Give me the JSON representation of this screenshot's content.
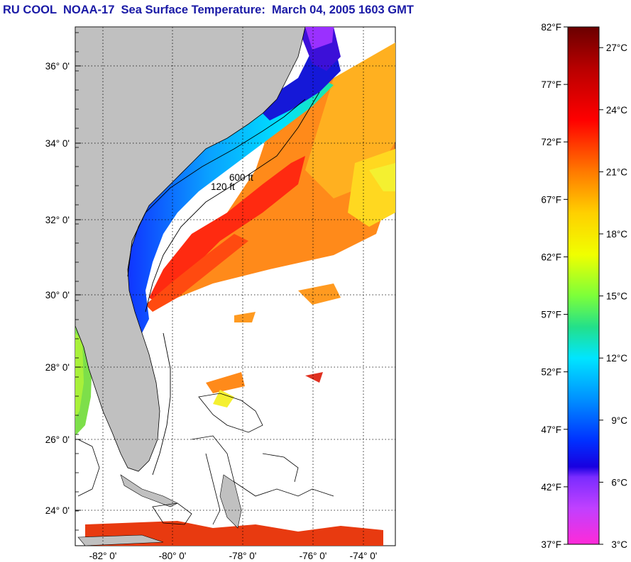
{
  "title": "RU COOL  NOAA-17  Sea Surface Temperature:  March 04, 2005 1603 GMT",
  "map": {
    "lat_labels": [
      "36° 0'",
      "34° 0'",
      "32° 0'",
      "30° 0'",
      "28° 0'",
      "26° 0'",
      "24° 0'"
    ],
    "lon_labels": [
      "-82° 0'",
      "-80° 0'",
      "-78° 0'",
      "-76° 0'",
      "-74° 0'"
    ],
    "contour_labels": [
      "120 ft",
      "600 ft"
    ],
    "colors": {
      "land": "#c0c0c0",
      "ocean_nodata": "#ffffff",
      "grid": "#000000"
    }
  },
  "colorbar": {
    "fahrenheit_labels": [
      "82°F",
      "77°F",
      "72°F",
      "67°F",
      "62°F",
      "57°F",
      "52°F",
      "47°F",
      "42°F",
      "37°F"
    ],
    "celsius_labels": [
      "27°C",
      "24°C",
      "21°C",
      "18°C",
      "15°C",
      "12°C",
      "9°C",
      "6°C",
      "3°C"
    ],
    "range_f": [
      37,
      82
    ],
    "range_c": [
      3,
      28
    ]
  }
}
